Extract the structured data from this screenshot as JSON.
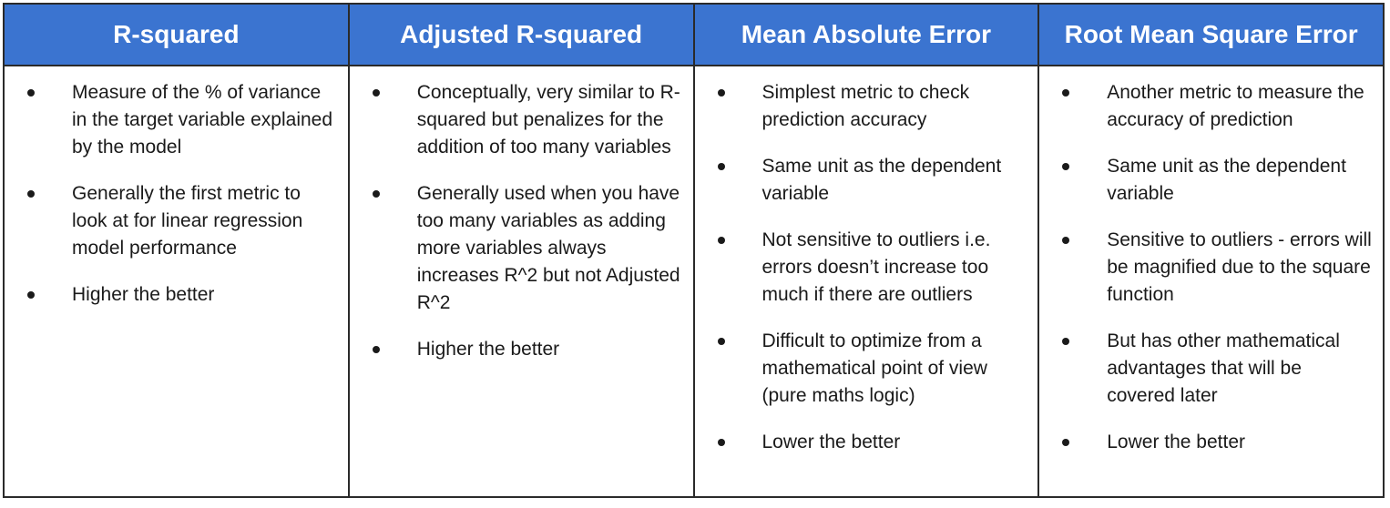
{
  "columns": [
    {
      "header": "R-squared",
      "bullets": [
        "Measure of the % of variance in the target variable explained by the model",
        "Generally the first metric to look at for linear regression model performance",
        "Higher the better"
      ]
    },
    {
      "header": "Adjusted R-squared",
      "bullets": [
        "Conceptually, very similar to R-squared but penalizes for the addition of too many variables",
        "Generally used when you have too many variables as adding more variables always increases R^2 but not Adjusted R^2",
        "Higher the better"
      ]
    },
    {
      "header": "Mean Absolute Error",
      "bullets": [
        "Simplest metric to check prediction accuracy",
        "Same unit as the dependent variable",
        "Not sensitive to outliers i.e. errors doesn’t increase too much if there are outliers",
        "Difficult to optimize from a mathematical point of view (pure maths logic)",
        "Lower the better"
      ]
    },
    {
      "header": "Root Mean Square Error",
      "bullets": [
        "Another metric to measure the accuracy of prediction",
        "Same unit as the dependent variable",
        "Sensitive to outliers - errors will be magnified due to the square function",
        "But has other mathematical advantages that will be covered later",
        "Lower the better"
      ]
    }
  ],
  "colors": {
    "header_background": "#3b74d0",
    "header_text": "#ffffff",
    "border": "#2a2a2a",
    "body_text": "#1a1a1a"
  },
  "icons": {
    "bullet": "bullet-dot-icon"
  }
}
